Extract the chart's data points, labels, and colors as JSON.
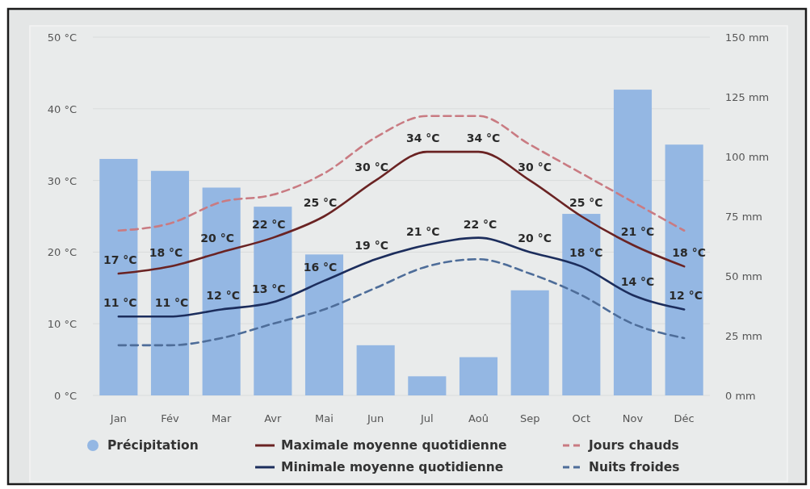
{
  "chart_data": {
    "type": "bar",
    "categories": [
      "Jan",
      "Fév",
      "Mar",
      "Avr",
      "Mai",
      "Jun",
      "Jul",
      "Aoû",
      "Sep",
      "Oct",
      "Nov",
      "Déc"
    ],
    "ylim": [
      0,
      50
    ],
    "yticks": [
      {
        "value": 0,
        "label": "0 °C"
      },
      {
        "value": 10,
        "label": "10 °C"
      },
      {
        "value": 20,
        "label": "20 °C"
      },
      {
        "value": 30,
        "label": "30 °C"
      },
      {
        "value": 40,
        "label": "40 °C"
      },
      {
        "value": 50,
        "label": "50 °C"
      }
    ],
    "y2lim": [
      0,
      150
    ],
    "y2ticks": [
      {
        "value": 0,
        "label": "0 mm"
      },
      {
        "value": 25,
        "label": "25 mm"
      },
      {
        "value": 50,
        "label": "50 mm"
      },
      {
        "value": 75,
        "label": "75 mm"
      },
      {
        "value": 100,
        "label": "100 mm"
      },
      {
        "value": 125,
        "label": "125 mm"
      },
      {
        "value": 150,
        "label": "150 mm"
      }
    ],
    "grid": "y",
    "legend": "bottom",
    "series": [
      {
        "name": "Précipitation",
        "type": "bar",
        "axis": "y2",
        "color": "#94b7e3",
        "values": [
          99,
          94,
          87,
          79,
          59,
          21,
          8,
          16,
          44,
          76,
          128,
          105
        ]
      },
      {
        "name": "Maximale moyenne quotidienne",
        "type": "line",
        "axis": "y",
        "color": "#6a2323",
        "line_style": "solid",
        "values": [
          17,
          18,
          20,
          22,
          25,
          30,
          34,
          34,
          30,
          25,
          21,
          18
        ],
        "value_labels": [
          "17 °C",
          "18 °C",
          "20 °C",
          "22 °C",
          "25 °C",
          "30 °C",
          "34 °C",
          "34 °C",
          "30 °C",
          "25 °C",
          "21 °C",
          "18 °C"
        ]
      },
      {
        "name": "Minimale moyenne quotidienne",
        "type": "line",
        "axis": "y",
        "color": "#1c2d5c",
        "line_style": "solid",
        "values": [
          11,
          11,
          12,
          13,
          16,
          19,
          21,
          22,
          20,
          18,
          14,
          12
        ],
        "value_labels": [
          "11 °C",
          "11 °C",
          "12 °C",
          "13 °C",
          "16 °C",
          "19 °C",
          "21 °C",
          "22 °C",
          "20 °C",
          "18 °C",
          "14 °C",
          "12 °C"
        ]
      },
      {
        "name": "Jours chauds",
        "type": "line",
        "axis": "y",
        "color": "#c97b82",
        "line_style": "dashed",
        "values": [
          23,
          24,
          27,
          28,
          31,
          36,
          39,
          39,
          35,
          31,
          27,
          23
        ]
      },
      {
        "name": "Nuits froides",
        "type": "line",
        "axis": "y",
        "color": "#4e6d99",
        "line_style": "dashed",
        "values": [
          7,
          7,
          8,
          10,
          12,
          15,
          18,
          19,
          17,
          14,
          10,
          8
        ]
      }
    ]
  }
}
